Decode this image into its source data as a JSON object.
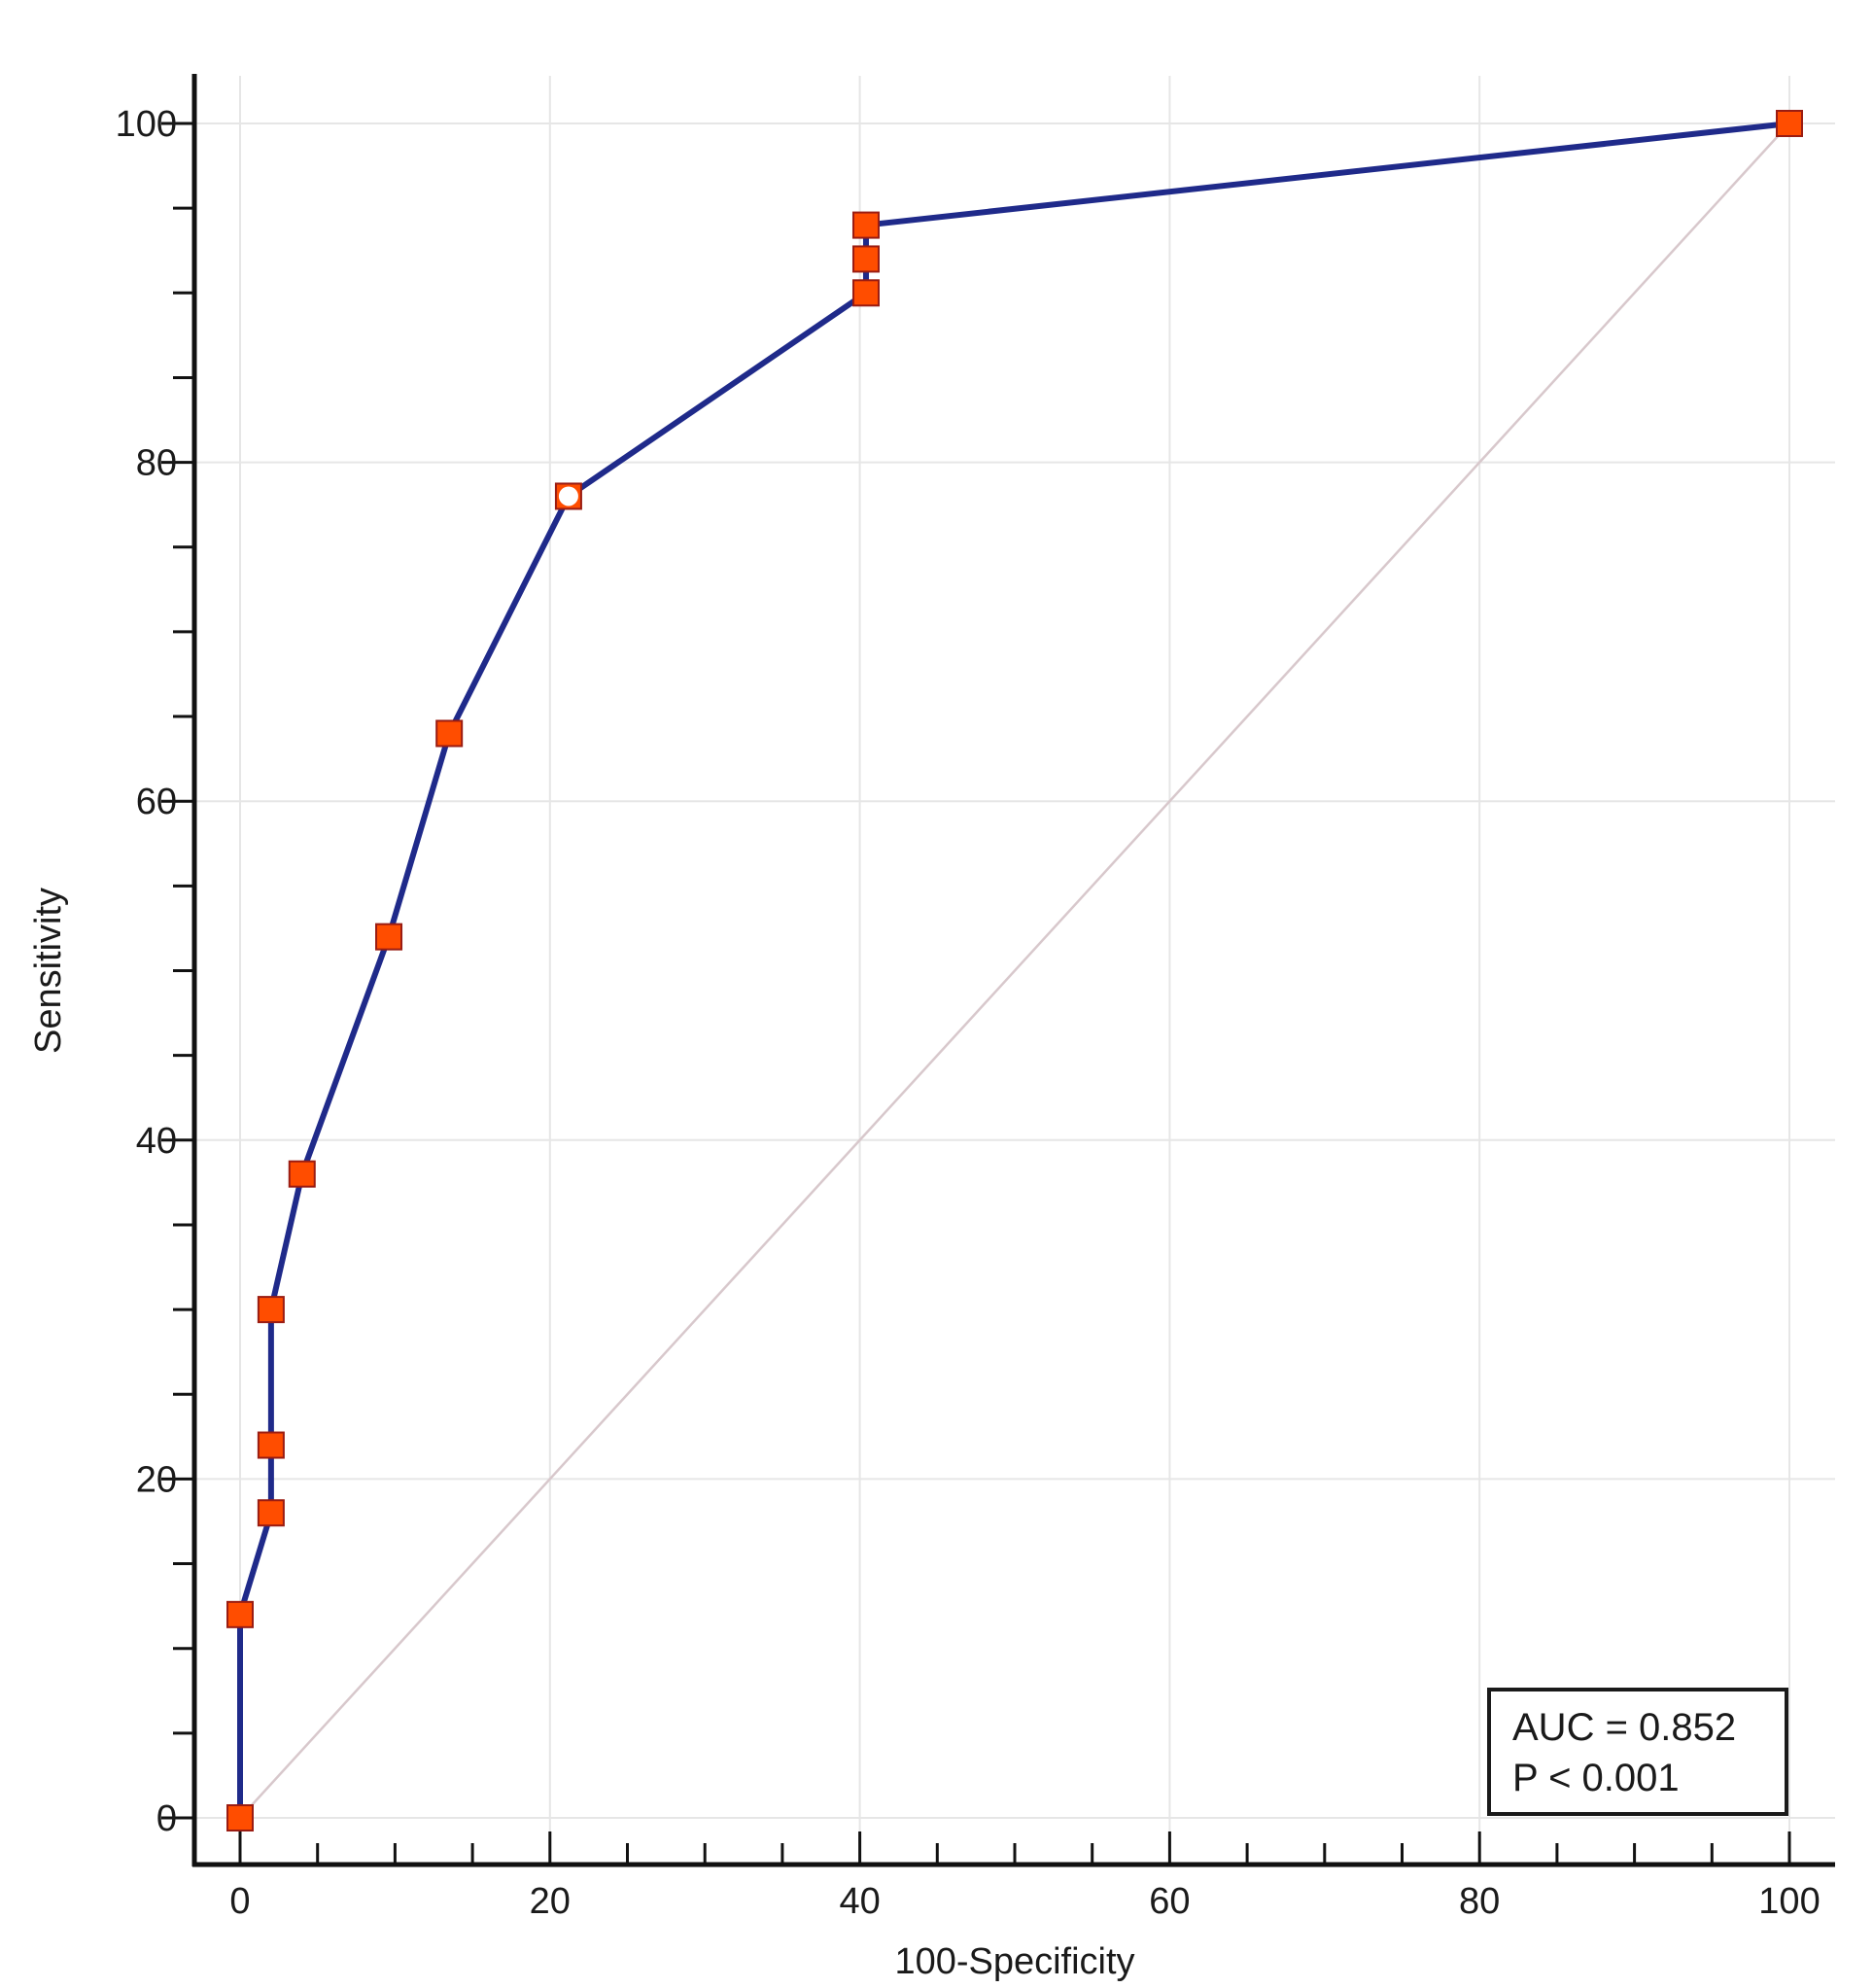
{
  "chart_data": {
    "type": "line",
    "xlabel": "100-Specificity",
    "ylabel": "Sensitivity",
    "xlim": [
      0,
      100
    ],
    "ylim": [
      0,
      100
    ],
    "x_ticks": [
      "0",
      "20",
      "40",
      "60",
      "80",
      "100"
    ],
    "y_ticks": [
      "0",
      "20",
      "40",
      "60",
      "80",
      "100"
    ],
    "grid": true,
    "series": [
      {
        "x": [
          0,
          0,
          2,
          2,
          2,
          4,
          9.6,
          13.5,
          21.2,
          40.4,
          40.4,
          40.4,
          100
        ],
        "y": [
          0,
          12,
          18,
          22,
          30,
          38,
          52,
          64,
          78,
          90,
          92,
          94,
          100
        ],
        "color": "#1f2a8a",
        "marker": "square",
        "marker_color": "#ff4d00",
        "highlight_point": {
          "x": 21.2,
          "y": 78,
          "marker": "open-circle"
        }
      }
    ],
    "reference_line": {
      "x": [
        0,
        100
      ],
      "y": [
        0,
        100
      ],
      "color": "#d8c8cc"
    },
    "annotation": {
      "lines": [
        "AUC = 0.852",
        "P < 0.001"
      ],
      "placement": "bottom-right"
    }
  }
}
